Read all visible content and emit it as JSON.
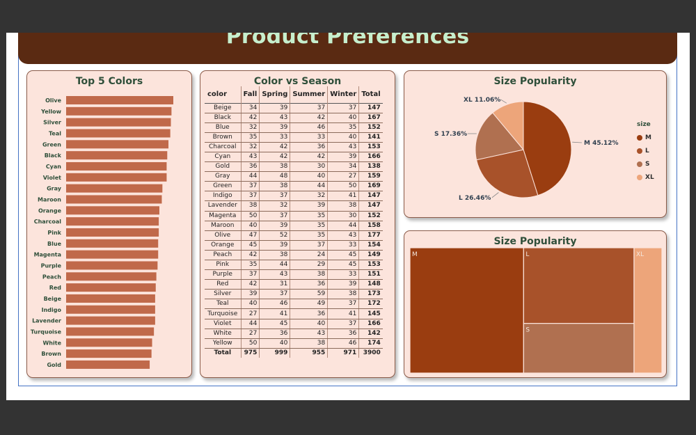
{
  "report": {
    "title": "Product Preferences"
  },
  "panels": {
    "top_colors_title": "Top 5 Colors",
    "season_title": "Color vs Season",
    "size_pie_title": "Size Popularity",
    "size_treemap_title": "Size Popularity"
  },
  "colors": {
    "bar": "#c0694a",
    "M": "#9a3d10",
    "L": "#a8522a",
    "S": "#b07050",
    "XL": "#eda57a",
    "panel_bg": "#fce4dc",
    "banner": "#5a2a12",
    "title_text": "#2f4f3a"
  },
  "chart_data": [
    {
      "type": "bar",
      "orientation": "horizontal",
      "title": "Top 5 Colors",
      "categories": [
        "Olive",
        "Yellow",
        "Silver",
        "Teal",
        "Green",
        "Black",
        "Cyan",
        "Violet",
        "Gray",
        "Maroon",
        "Orange",
        "Charcoal",
        "Pink",
        "Blue",
        "Magenta",
        "Purple",
        "Peach",
        "Red",
        "Beige",
        "Indigo",
        "Lavender",
        "Turquoise",
        "White",
        "Brown",
        "Gold"
      ],
      "values": [
        177,
        174,
        173,
        172,
        169,
        167,
        166,
        166,
        159,
        158,
        154,
        153,
        153,
        152,
        152,
        151,
        149,
        148,
        147,
        147,
        147,
        145,
        142,
        141,
        138
      ],
      "xlim": [
        0,
        177
      ]
    },
    {
      "type": "table",
      "title": "Color vs Season",
      "columns": [
        "color",
        "Fall",
        "Spring",
        "Summer",
        "Winter",
        "Total"
      ],
      "rows": [
        [
          "Beige",
          34,
          39,
          37,
          37,
          147
        ],
        [
          "Black",
          42,
          43,
          42,
          40,
          167
        ],
        [
          "Blue",
          32,
          39,
          46,
          35,
          152
        ],
        [
          "Brown",
          35,
          33,
          33,
          40,
          141
        ],
        [
          "Charcoal",
          32,
          42,
          36,
          43,
          153
        ],
        [
          "Cyan",
          43,
          42,
          42,
          39,
          166
        ],
        [
          "Gold",
          36,
          38,
          30,
          34,
          138
        ],
        [
          "Gray",
          44,
          48,
          40,
          27,
          159
        ],
        [
          "Green",
          37,
          38,
          44,
          50,
          169
        ],
        [
          "Indigo",
          37,
          37,
          32,
          41,
          147
        ],
        [
          "Lavender",
          38,
          32,
          39,
          38,
          147
        ],
        [
          "Magenta",
          50,
          37,
          35,
          30,
          152
        ],
        [
          "Maroon",
          40,
          39,
          35,
          44,
          158
        ],
        [
          "Olive",
          47,
          52,
          35,
          43,
          177
        ],
        [
          "Orange",
          45,
          39,
          37,
          33,
          154
        ],
        [
          "Peach",
          42,
          38,
          24,
          45,
          149
        ],
        [
          "Pink",
          35,
          44,
          29,
          45,
          153
        ],
        [
          "Purple",
          37,
          43,
          38,
          33,
          151
        ],
        [
          "Red",
          42,
          31,
          36,
          39,
          148
        ],
        [
          "Silver",
          39,
          37,
          59,
          38,
          173
        ],
        [
          "Teal",
          40,
          46,
          49,
          37,
          172
        ],
        [
          "Turquoise",
          27,
          41,
          36,
          41,
          145
        ],
        [
          "Violet",
          44,
          45,
          40,
          37,
          166
        ],
        [
          "White",
          27,
          36,
          43,
          36,
          142
        ],
        [
          "Yellow",
          50,
          40,
          38,
          46,
          174
        ]
      ],
      "totals": [
        "Total",
        975,
        999,
        955,
        971,
        3900
      ]
    },
    {
      "type": "pie",
      "title": "Size Popularity",
      "legend_title": "size",
      "legend_position": "right",
      "slices": [
        {
          "label": "M",
          "value": 45.12,
          "text": "M 45.12%"
        },
        {
          "label": "L",
          "value": 26.46,
          "text": "L 26.46%"
        },
        {
          "label": "S",
          "value": 17.36,
          "text": "S 17.36%"
        },
        {
          "label": "XL",
          "value": 11.06,
          "text": "XL 11.06%"
        }
      ]
    },
    {
      "type": "treemap",
      "title": "Size Popularity",
      "items": [
        {
          "label": "M",
          "value": 45.12
        },
        {
          "label": "L",
          "value": 26.46
        },
        {
          "label": "S",
          "value": 17.36
        },
        {
          "label": "XL",
          "value": 11.06
        }
      ]
    }
  ]
}
